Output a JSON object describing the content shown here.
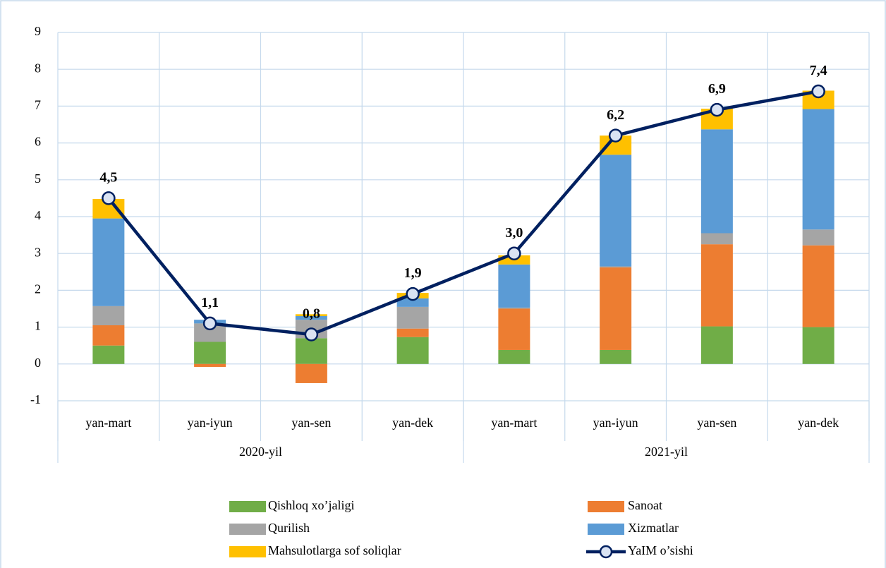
{
  "chart_data": {
    "type": "stacked_bar_line",
    "categories": [
      "yan-mart",
      "yan-iyun",
      "yan-sen",
      "yan-dek",
      "yan-mart",
      "yan-iyun",
      "yan-sen",
      "yan-dek"
    ],
    "groups": [
      {
        "label": "2020-yil",
        "count": 4
      },
      {
        "label": "2021-yil",
        "count": 4
      }
    ],
    "series": [
      {
        "name": "Qishloq xo’jaligi",
        "color": "#70ad47",
        "values": [
          0.5,
          0.6,
          0.7,
          0.73,
          0.38,
          0.38,
          1.02,
          1.0
        ]
      },
      {
        "name": "Sanoat",
        "color": "#ed7d31",
        "values": [
          0.55,
          -0.08,
          -0.52,
          0.23,
          1.12,
          2.24,
          2.23,
          2.22
        ]
      },
      {
        "name": "Qurilish",
        "color": "#a5a5a5",
        "values": [
          0.52,
          0.5,
          0.5,
          0.59,
          0.03,
          0.03,
          0.3,
          0.43
        ]
      },
      {
        "name": "Xizmatlar",
        "color": "#5b9bd5",
        "values": [
          2.38,
          0.1,
          0.1,
          0.23,
          1.17,
          3.03,
          2.82,
          3.27
        ]
      },
      {
        "name": "Mahsulotlarga sof soliqlar",
        "color": "#ffc000",
        "values": [
          0.53,
          0,
          0.05,
          0.15,
          0.25,
          0.52,
          0.56,
          0.5
        ]
      }
    ],
    "line": {
      "name": "YaIM o’sishi",
      "color": "#002060",
      "marker_fill": "#dae3f3",
      "values": [
        4.5,
        1.1,
        0.8,
        1.9,
        3.0,
        6.2,
        6.9,
        7.4
      ],
      "value_labels": [
        "4,5",
        "1,1",
        "0,8",
        "1,9",
        "3,0",
        "6,2",
        "6,9",
        "7,4"
      ]
    },
    "ylim": [
      -1,
      9
    ],
    "yticks": [
      -1,
      0,
      1,
      2,
      3,
      4,
      5,
      6,
      7,
      8,
      9
    ],
    "grid": true
  }
}
